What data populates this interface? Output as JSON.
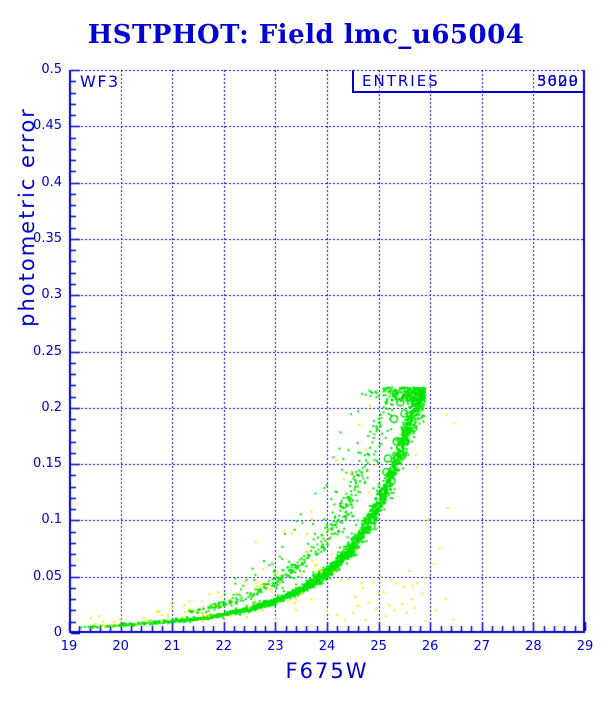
{
  "header": {
    "title": "HSTPHOT: Field lmc_u65004"
  },
  "plot": {
    "panel_label": "WF3",
    "entries_label": "ENTRIES",
    "entries_values": [
      "3009",
      "5620"
    ],
    "colors": {
      "axis_blue": "#0000cc",
      "green_points": "#00e400",
      "yellow_points": "#ffe800",
      "background": "#ffffff"
    }
  },
  "chart_data": {
    "type": "scatter",
    "title": "HSTPHOT: Field lmc_u65004",
    "xlabel": "F675W",
    "ylabel": "photometric error",
    "xlim": [
      19,
      29
    ],
    "ylim": [
      0,
      0.5
    ],
    "x_tick_labels": [
      "19",
      "20",
      "21",
      "22",
      "23",
      "24",
      "25",
      "26",
      "27",
      "28",
      "29"
    ],
    "y_tick_labels": [
      "0",
      "0.05",
      "0.1",
      "0.15",
      "0.2",
      "0.25",
      "0.3",
      "0.35",
      "0.4",
      "0.45",
      "0.5"
    ],
    "x_major_step": 1,
    "x_minor_step": 0.2,
    "y_major_step": 0.05,
    "y_minor_step": 0.01,
    "grid": "dashed-at-major-ticks",
    "series": [
      {
        "name": "green-points",
        "color": "#00e400",
        "count": 3009,
        "mag_range": [
          19.0,
          25.9
        ],
        "error_cutoff": 0.218,
        "band_mag": [
          19.0,
          19.5,
          20.0,
          20.5,
          21.0,
          21.5,
          22.0,
          22.5,
          23.0,
          23.5,
          24.0,
          24.5,
          25.0,
          25.25,
          25.5,
          25.7,
          25.85,
          25.95
        ],
        "band_err": [
          0.0045,
          0.0055,
          0.0068,
          0.0082,
          0.01,
          0.0125,
          0.016,
          0.021,
          0.028,
          0.038,
          0.053,
          0.075,
          0.112,
          0.138,
          0.172,
          0.2,
          0.213,
          0.218
        ],
        "upper_band_factor": 1.5,
        "rings": [
          [
            25.18,
            0.155
          ],
          [
            25.3,
            0.19
          ],
          [
            25.35,
            0.17
          ],
          [
            25.42,
            0.205
          ],
          [
            25.25,
            0.135
          ],
          [
            25.5,
            0.195
          ],
          [
            25.55,
            0.178
          ],
          [
            25.15,
            0.143
          ],
          [
            24.86,
            0.095
          ]
        ]
      },
      {
        "name": "yellow-points",
        "color": "#ffe800",
        "points": [
          [
            26.32,
            0.194
          ],
          [
            26.46,
            0.186
          ],
          [
            24.83,
            0.202
          ],
          [
            24.63,
            0.185
          ],
          [
            25.72,
            0.158
          ],
          [
            25.74,
            0.147
          ],
          [
            24.75,
            0.163
          ],
          [
            24.96,
            0.149
          ],
          [
            24.8,
            0.125
          ],
          [
            26.34,
            0.111
          ],
          [
            25.97,
            0.101
          ],
          [
            26.18,
            0.075
          ],
          [
            26.07,
            0.061
          ],
          [
            25.9,
            0.049
          ],
          [
            26.12,
            0.02
          ],
          [
            25.91,
            0.011
          ],
          [
            26.3,
            0.03
          ],
          [
            26.45,
            0.012
          ],
          [
            25.95,
            0.1
          ],
          [
            23.17,
            0.09
          ],
          [
            22.62,
            0.081
          ],
          [
            23.6,
            0.072
          ],
          [
            23.95,
            0.083
          ],
          [
            24.1,
            0.07
          ],
          [
            24.35,
            0.012
          ],
          [
            24.5,
            0.018
          ],
          [
            24.55,
            0.032
          ],
          [
            24.7,
            0.04
          ],
          [
            24.75,
            0.012
          ],
          [
            24.8,
            0.027
          ],
          [
            24.9,
            0.045
          ],
          [
            24.95,
            0.021
          ],
          [
            25.0,
            0.035
          ],
          [
            25.05,
            0.05
          ],
          [
            25.1,
            0.036
          ],
          [
            25.15,
            0.015
          ],
          [
            25.2,
            0.025
          ],
          [
            25.25,
            0.047
          ],
          [
            25.3,
            0.02
          ],
          [
            25.35,
            0.044
          ],
          [
            25.45,
            0.026
          ],
          [
            25.5,
            0.041
          ],
          [
            25.55,
            0.018
          ],
          [
            25.6,
            0.055
          ],
          [
            25.65,
            0.03
          ],
          [
            25.66,
            0.042
          ],
          [
            25.7,
            0.022
          ],
          [
            25.75,
            0.044
          ],
          [
            25.85,
            0.035
          ],
          [
            24.42,
            0.048
          ],
          [
            24.6,
            0.024
          ],
          [
            24.67,
            0.044
          ],
          [
            19.7,
            0.006
          ],
          [
            20.0,
            0.012
          ],
          [
            20.3,
            0.008
          ],
          [
            20.45,
            0.013
          ],
          [
            20.8,
            0.01
          ],
          [
            21.0,
            0.022
          ],
          [
            21.2,
            0.014
          ],
          [
            21.45,
            0.02
          ],
          [
            21.6,
            0.016
          ],
          [
            21.8,
            0.024
          ],
          [
            22.0,
            0.012
          ],
          [
            22.15,
            0.03
          ],
          [
            22.3,
            0.035
          ],
          [
            22.45,
            0.014
          ],
          [
            22.6,
            0.028
          ],
          [
            22.75,
            0.02
          ],
          [
            22.9,
            0.039
          ],
          [
            23.0,
            0.012
          ],
          [
            23.1,
            0.045
          ],
          [
            23.25,
            0.028
          ],
          [
            23.4,
            0.02
          ],
          [
            23.5,
            0.052
          ],
          [
            23.7,
            0.03
          ],
          [
            23.8,
            0.06
          ],
          [
            23.9,
            0.055
          ],
          [
            24.0,
            0.02
          ],
          [
            24.2,
            0.016
          ]
        ],
        "scatter_count": 60
      }
    ]
  }
}
